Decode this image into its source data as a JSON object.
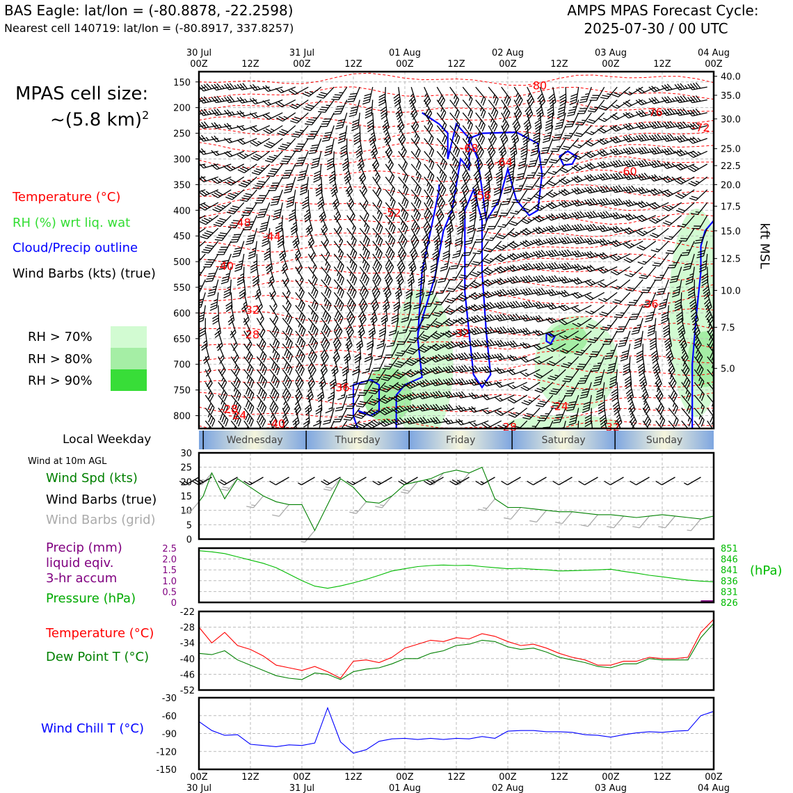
{
  "header": {
    "title_left": "BAS Eagle: lat/lon = (-80.8878, -22.2598)",
    "subtitle_left": "Nearest cell 140719: lat/lon = (-80.8917, 337.8257)",
    "title_right_1": "AMPS MPAS Forecast Cycle:",
    "title_right_2": "2025-07-30 / 00 UTC"
  },
  "cell_size": {
    "line1": "MPAS cell size:",
    "line2": "~(5.8 km)",
    "sup": "2"
  },
  "legend_main": {
    "temperature": "Temperature (°C)",
    "rh": "RH (%) wrt liq. wat",
    "cloud": "Cloud/Precip outline",
    "wind": "Wind Barbs (kts) (true)"
  },
  "rh_legend": [
    {
      "label": "RH > 70%",
      "color": "#d2fbd2"
    },
    {
      "label": "RH > 80%",
      "color": "#a5eea5"
    },
    {
      "label": "RH > 90%",
      "color": "#38dd38"
    }
  ],
  "colors": {
    "temperature": "#ff0000",
    "rh": "#22dd22",
    "cloud": "#0000ff",
    "wind_speed": "#008000",
    "dewpoint": "#008000",
    "precip": "#800080",
    "pressure": "#00bb00",
    "wind_chill": "#0000ff",
    "grid_barbs": "#aaaaaa",
    "weekday_blue": "#7ea6e0"
  },
  "time_axis": {
    "top_dates": [
      "30 Jul",
      "",
      "31 Jul",
      "",
      "01 Aug",
      "",
      "02 Aug",
      "",
      "03 Aug",
      "",
      "04 Aug"
    ],
    "top_hours": [
      "00Z",
      "12Z",
      "00Z",
      "12Z",
      "00Z",
      "12Z",
      "00Z",
      "12Z",
      "00Z",
      "12Z",
      "00Z"
    ],
    "bottom_hours": [
      "00Z",
      "12Z",
      "00Z",
      "12Z",
      "00Z",
      "12Z",
      "00Z",
      "12Z",
      "00Z",
      "12Z",
      "00Z"
    ],
    "bottom_dates": [
      "30 Jul",
      "",
      "31 Jul",
      "",
      "01 Aug",
      "",
      "02 Aug",
      "",
      "03 Aug",
      "",
      "04 Aug"
    ]
  },
  "weekday": {
    "label": "Local Weekday",
    "days": [
      "Wednesday",
      "Thursday",
      "Friday",
      "Saturday",
      "Sunday"
    ]
  },
  "panel_labels": {
    "wind_10m": "Wind at 10m AGL",
    "wind_spd": "Wind Spd (kts)",
    "wind_barbs_true": "Wind Barbs (true)",
    "wind_barbs_grid": "Wind Barbs (grid)",
    "precip_1": "Precip (mm)",
    "precip_2": "liquid eqiv.",
    "precip_3": "3-hr accum",
    "pressure": "Pressure (hPa)",
    "pressure_unit": "(hPa)",
    "temperature": "Temperature (°C)",
    "dewpoint": "Dew Point T (°C)",
    "wind_chill": "Wind Chill T (°C)",
    "kft": "kft MSL"
  },
  "chart_data": [
    {
      "type": "heatmap",
      "name": "upper-air time-height section",
      "x_hours": [
        0,
        120
      ],
      "pressure_ticks": [
        "150",
        "200",
        "250",
        "300",
        "350",
        "400",
        "450",
        "500",
        "550",
        "600",
        "650",
        "700",
        "750",
        "800"
      ],
      "pressure_values": [
        150,
        200,
        250,
        300,
        350,
        400,
        450,
        500,
        550,
        600,
        650,
        700,
        750,
        800
      ],
      "ylim": [
        130,
        825
      ],
      "kft_ticks": [
        "40.0",
        "35.0",
        "30.0",
        "25.0",
        "22.5",
        "20.0",
        "17.5",
        "15.0",
        "12.5",
        "10.0",
        "7.5",
        "5.0"
      ],
      "kft_pressures": [
        139,
        176,
        222,
        280,
        313,
        350,
        392,
        440,
        494,
        556,
        628,
        708
      ],
      "temperature_labels": [
        {
          "text": "-80",
          "hour": 79,
          "p": 158
        },
        {
          "text": "-76",
          "hour": 106,
          "p": 210
        },
        {
          "text": "-72",
          "hour": 117,
          "p": 240
        },
        {
          "text": "-68",
          "hour": 63,
          "p": 280
        },
        {
          "text": "-64",
          "hour": 71,
          "p": 307
        },
        {
          "text": "-60",
          "hour": 100,
          "p": 325
        },
        {
          "text": "-56",
          "hour": 66,
          "p": 372
        },
        {
          "text": "-52",
          "hour": 45,
          "p": 406
        },
        {
          "text": "-48",
          "hour": 10,
          "p": 425
        },
        {
          "text": "-44",
          "hour": 17,
          "p": 452
        },
        {
          "text": "-40",
          "hour": 6,
          "p": 509
        },
        {
          "text": "-36",
          "hour": 105,
          "p": 583
        },
        {
          "text": "-32",
          "hour": 12,
          "p": 595
        },
        {
          "text": "-32",
          "hour": 61,
          "p": 640
        },
        {
          "text": "-28",
          "hour": 12,
          "p": 643
        },
        {
          "text": "-36",
          "hour": 33,
          "p": 746
        },
        {
          "text": "-24",
          "hour": 84,
          "p": 782
        },
        {
          "text": "-28",
          "hour": 7,
          "p": 788
        },
        {
          "text": "-24",
          "hour": 9,
          "p": 800
        },
        {
          "text": "-40",
          "hour": 18,
          "p": 816
        },
        {
          "text": "-28",
          "hour": 72,
          "p": 823
        },
        {
          "text": "-32",
          "hour": 96,
          "p": 823
        }
      ]
    },
    {
      "type": "line",
      "name": "wind at 10m",
      "ylim": [
        0,
        30
      ],
      "yticks": [
        "0",
        "5",
        "10",
        "15",
        "20",
        "25",
        "30"
      ],
      "series": [
        {
          "name": "Wind Spd (kts)",
          "x": [
            0,
            1,
            3,
            6,
            9,
            12,
            15,
            18,
            21,
            24,
            27,
            30,
            33,
            36,
            39,
            42,
            45,
            48,
            51,
            54,
            57,
            60,
            63,
            66,
            69,
            72,
            75,
            78,
            81,
            84,
            87,
            90,
            93,
            96,
            99,
            102,
            105,
            108,
            111,
            114,
            117,
            120
          ],
          "y": [
            13,
            15,
            23,
            14,
            21,
            18,
            15,
            13,
            12,
            12,
            3,
            12,
            21,
            18,
            13,
            12.5,
            15,
            19,
            20,
            21,
            23,
            24,
            23,
            25,
            14,
            11,
            11,
            10.5,
            10,
            9.5,
            9.5,
            9,
            8.5,
            8.5,
            8,
            7.5,
            8,
            8.5,
            8,
            7.5,
            7,
            8
          ]
        }
      ]
    },
    {
      "type": "line",
      "name": "precipitation and pressure",
      "ylim_precip": [
        0,
        2.5
      ],
      "precip_ticks": [
        "0",
        "0.5",
        "1.0",
        "1.5",
        "2.0",
        "2.5"
      ],
      "ylim_pressure": [
        826,
        851
      ],
      "pressure_ticks": [
        "826",
        "831",
        "836",
        "841",
        "846",
        "851"
      ],
      "series": [
        {
          "name": "Pressure (hPa)",
          "x": [
            0,
            3,
            6,
            9,
            12,
            15,
            18,
            21,
            24,
            27,
            30,
            33,
            36,
            39,
            42,
            45,
            48,
            51,
            54,
            57,
            60,
            63,
            66,
            69,
            72,
            75,
            78,
            81,
            84,
            87,
            90,
            93,
            96,
            99,
            102,
            105,
            108,
            111,
            114,
            117,
            120
          ],
          "y": [
            849.8,
            849.3,
            848.5,
            847.0,
            845.5,
            844.0,
            842.0,
            839.0,
            836.0,
            833.5,
            832.5,
            833.6,
            835.0,
            836.6,
            838.5,
            840.5,
            841.5,
            842.5,
            843.0,
            843.2,
            843.0,
            843.1,
            842.5,
            842.0,
            841.5,
            841.7,
            841.3,
            841.0,
            840.5,
            840.6,
            840.8,
            841.0,
            841.3,
            840.3,
            839.5,
            838.5,
            837.8,
            837.0,
            836.3,
            835.8,
            835.5
          ]
        },
        {
          "name": "Precip (mm)",
          "x": [
            117,
            120
          ],
          "y": [
            0.05,
            0.05
          ]
        }
      ]
    },
    {
      "type": "line",
      "name": "temperature and dew point",
      "ylim": [
        -52,
        -22
      ],
      "yticks": [
        "-52",
        "-46",
        "-40",
        "-34",
        "-28",
        "-22"
      ],
      "series": [
        {
          "name": "Temperature (°C)",
          "x": [
            0,
            3,
            6,
            9,
            12,
            15,
            18,
            21,
            24,
            27,
            30,
            33,
            36,
            39,
            42,
            45,
            48,
            51,
            54,
            57,
            60,
            63,
            66,
            69,
            72,
            75,
            78,
            81,
            84,
            87,
            90,
            93,
            96,
            99,
            102,
            105,
            108,
            111,
            114,
            117,
            120
          ],
          "y": [
            -28,
            -34,
            -30,
            -35,
            -36.5,
            -39,
            -42.5,
            -43.5,
            -44.5,
            -43,
            -45,
            -47.5,
            -41,
            -40.5,
            -41.5,
            -39.5,
            -36,
            -34.5,
            -33,
            -33.5,
            -32,
            -32.5,
            -30.5,
            -31.5,
            -33.5,
            -35,
            -34.5,
            -36,
            -38,
            -39.5,
            -40.5,
            -42.5,
            -42.5,
            -41,
            -41,
            -39.5,
            -40,
            -40,
            -39.5,
            -30,
            -25
          ]
        },
        {
          "name": "Dew Point T (°C)",
          "x": [
            0,
            3,
            6,
            9,
            12,
            15,
            18,
            21,
            24,
            27,
            30,
            33,
            36,
            39,
            42,
            45,
            48,
            51,
            54,
            57,
            60,
            63,
            66,
            69,
            72,
            75,
            78,
            81,
            84,
            87,
            90,
            93,
            96,
            99,
            102,
            105,
            108,
            111,
            114,
            117,
            120
          ],
          "y": [
            -38,
            -38.5,
            -37,
            -40.5,
            -42.5,
            -44.5,
            -46.5,
            -47.5,
            -48,
            -45.5,
            -46,
            -48,
            -45,
            -44,
            -43.5,
            -42,
            -40,
            -40,
            -38,
            -37,
            -35,
            -34.5,
            -33,
            -33.5,
            -35.5,
            -36.5,
            -36,
            -37.5,
            -39.5,
            -40.5,
            -41.5,
            -43,
            -43.5,
            -42,
            -42,
            -40,
            -40.5,
            -40.5,
            -40.5,
            -32,
            -26.5
          ]
        }
      ]
    },
    {
      "type": "line",
      "name": "wind chill",
      "ylim": [
        -150,
        -30
      ],
      "yticks": [
        "-150",
        "-120",
        "-90",
        "-60",
        "-30"
      ],
      "series": [
        {
          "name": "Wind Chill T (°C)",
          "x": [
            0,
            3,
            6,
            9,
            12,
            15,
            18,
            21,
            24,
            27,
            30,
            33,
            36,
            39,
            42,
            45,
            48,
            51,
            54,
            57,
            60,
            63,
            66,
            69,
            72,
            75,
            78,
            81,
            84,
            87,
            90,
            93,
            96,
            99,
            102,
            105,
            108,
            111,
            114,
            117,
            120
          ],
          "y": [
            -70,
            -85,
            -93,
            -92,
            -108,
            -110,
            -112,
            -109,
            -110,
            -106,
            -47,
            -104,
            -123,
            -117,
            -103,
            -99,
            -98,
            -100,
            -98,
            -100,
            -98,
            -99,
            -95,
            -98,
            -86,
            -85,
            -85,
            -87,
            -87,
            -88,
            -92,
            -93,
            -96,
            -92,
            -89,
            -87,
            -88,
            -86,
            -85,
            -60,
            -53
          ]
        }
      ]
    }
  ]
}
